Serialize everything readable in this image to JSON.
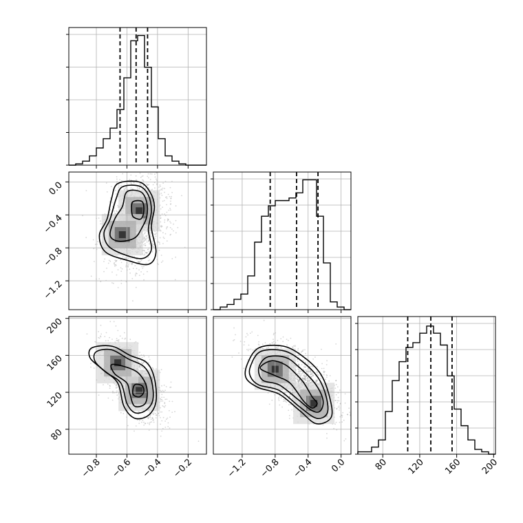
{
  "chart_data": {
    "type": "corner",
    "grid": true,
    "parameters": [
      {
        "range": [
          -0.98,
          -0.08
        ],
        "ticks": [
          -0.8,
          -0.6,
          -0.4,
          -0.2
        ],
        "tick_labels": [
          "−0.8",
          "−0.6",
          "−0.4",
          "−0.2"
        ],
        "quantiles": [
          -0.645,
          -0.54,
          -0.465
        ]
      },
      {
        "range": [
          -1.55,
          0.12
        ],
        "ticks": [
          -1.2,
          -0.8,
          -0.4,
          0.0
        ],
        "tick_labels": [
          "−1.2",
          "−0.8",
          "−0.4",
          "0.0"
        ],
        "quantiles": [
          -0.86,
          -0.54,
          -0.28
        ]
      },
      {
        "range": [
          53,
          202
        ],
        "ticks": [
          80,
          120,
          160,
          200
        ],
        "tick_labels": [
          "80",
          "120",
          "160",
          "200"
        ],
        "quantiles": [
          107,
          132,
          155
        ]
      }
    ],
    "histograms": [
      {
        "param": 0,
        "bins": [
          -0.98,
          -0.08
        ],
        "counts": [
          0,
          1,
          3,
          7,
          13,
          20,
          28,
          42,
          66,
          94,
          98,
          74,
          44,
          20,
          7,
          3,
          1,
          0,
          0,
          0
        ],
        "ymax": 104,
        "y_ticks_count": 4
      },
      {
        "param": 1,
        "bins": [
          -1.55,
          0.12
        ],
        "counts": [
          0,
          1,
          2,
          4,
          6,
          13,
          26,
          36,
          40,
          42,
          42,
          43,
          45,
          50,
          50,
          36,
          18,
          3,
          1,
          0
        ],
        "ymax": 53,
        "y_ticks_count": 5
      },
      {
        "param": 2,
        "bins": [
          53,
          202
        ],
        "counts": [
          1,
          1,
          3,
          6,
          18,
          31,
          39,
          45,
          47,
          51,
          54,
          51,
          46,
          33,
          19,
          12,
          6,
          2,
          1,
          0
        ],
        "ymax": 58,
        "y_ticks_count": 5
      }
    ],
    "joint": [
      {
        "x_param": 0,
        "y_param": 1,
        "center": [
          -0.54,
          -0.5
        ],
        "spread": [
          0.1,
          0.28
        ],
        "correlation": 0.2,
        "peaks": [
          [
            -0.52,
            -0.35
          ],
          [
            -0.63,
            -0.64
          ]
        ],
        "contours": [
          [
            [
              -0.66,
              -0.02
            ],
            [
              -0.52,
              0.0
            ],
            [
              -0.45,
              -0.12
            ],
            [
              -0.42,
              -0.3
            ],
            [
              -0.44,
              -0.55
            ],
            [
              -0.41,
              -0.85
            ],
            [
              -0.46,
              -1.0
            ],
            [
              -0.6,
              -0.95
            ],
            [
              -0.74,
              -0.85
            ],
            [
              -0.78,
              -0.65
            ],
            [
              -0.73,
              -0.45
            ],
            [
              -0.7,
              -0.2
            ]
          ],
          [
            [
              -0.63,
              -0.06
            ],
            [
              -0.52,
              -0.05
            ],
            [
              -0.46,
              -0.16
            ],
            [
              -0.44,
              -0.35
            ],
            [
              -0.46,
              -0.58
            ],
            [
              -0.44,
              -0.82
            ],
            [
              -0.5,
              -0.93
            ],
            [
              -0.62,
              -0.88
            ],
            [
              -0.72,
              -0.78
            ],
            [
              -0.75,
              -0.62
            ],
            [
              -0.71,
              -0.45
            ],
            [
              -0.67,
              -0.2
            ]
          ],
          [
            [
              -0.6,
              -0.12
            ],
            [
              -0.51,
              -0.12
            ],
            [
              -0.47,
              -0.25
            ],
            [
              -0.47,
              -0.42
            ],
            [
              -0.5,
              -0.55
            ],
            [
              -0.55,
              -0.68
            ],
            [
              -0.65,
              -0.72
            ],
            [
              -0.71,
              -0.65
            ],
            [
              -0.68,
              -0.45
            ],
            [
              -0.63,
              -0.3
            ]
          ],
          [
            [
              -0.56,
              -0.24
            ],
            [
              -0.5,
              -0.24
            ],
            [
              -0.49,
              -0.36
            ],
            [
              -0.51,
              -0.45
            ],
            [
              -0.56,
              -0.42
            ],
            [
              -0.57,
              -0.32
            ]
          ]
        ]
      },
      {
        "x_param": 0,
        "y_param": 2,
        "center": [
          -0.56,
          133
        ],
        "spread": [
          0.1,
          20
        ],
        "correlation": -0.6,
        "peaks": [
          [
            -0.52,
            122
          ],
          [
            -0.66,
            152
          ]
        ],
        "contours": [
          [
            [
              -0.83,
              168
            ],
            [
              -0.7,
              170
            ],
            [
              -0.58,
              160
            ],
            [
              -0.47,
              152
            ],
            [
              -0.42,
              135
            ],
            [
              -0.41,
              110
            ],
            [
              -0.46,
              95
            ],
            [
              -0.55,
              92
            ],
            [
              -0.62,
              105
            ],
            [
              -0.66,
              130
            ],
            [
              -0.76,
              145
            ],
            [
              -0.84,
              157
            ]
          ],
          [
            [
              -0.8,
              164
            ],
            [
              -0.7,
              166
            ],
            [
              -0.59,
              156
            ],
            [
              -0.49,
              148
            ],
            [
              -0.44,
              133
            ],
            [
              -0.43,
              112
            ],
            [
              -0.48,
              100
            ],
            [
              -0.55,
              98
            ],
            [
              -0.6,
              108
            ],
            [
              -0.64,
              130
            ],
            [
              -0.74,
              142
            ],
            [
              -0.81,
              154
            ]
          ],
          [
            [
              -0.7,
              150
            ],
            [
              -0.6,
              147
            ],
            [
              -0.52,
              140
            ],
            [
              -0.47,
              125
            ],
            [
              -0.48,
              108
            ],
            [
              -0.55,
              105
            ],
            [
              -0.58,
              118
            ],
            [
              -0.6,
              130
            ],
            [
              -0.68,
              140
            ]
          ],
          [
            [
              -0.55,
              128
            ],
            [
              -0.5,
              127
            ],
            [
              -0.49,
              120
            ],
            [
              -0.52,
              115
            ],
            [
              -0.56,
              118
            ]
          ]
        ]
      },
      {
        "x_param": 1,
        "y_param": 2,
        "center": [
          -0.54,
          132
        ],
        "spread": [
          0.25,
          20
        ],
        "correlation": -0.65,
        "peaks": [
          [
            -0.8,
            145
          ],
          [
            -0.33,
            108
          ]
        ],
        "contours": [
          [
            [
              -1.14,
              150
            ],
            [
              -1.0,
              168
            ],
            [
              -0.7,
              170
            ],
            [
              -0.45,
              158
            ],
            [
              -0.25,
              140
            ],
            [
              -0.14,
              115
            ],
            [
              -0.12,
              93
            ],
            [
              -0.3,
              86
            ],
            [
              -0.5,
              100
            ],
            [
              -0.75,
              118
            ],
            [
              -1.0,
              125
            ],
            [
              -1.15,
              135
            ]
          ],
          [
            [
              -1.1,
              148
            ],
            [
              -0.98,
              164
            ],
            [
              -0.7,
              165
            ],
            [
              -0.48,
              154
            ],
            [
              -0.28,
              136
            ],
            [
              -0.18,
              115
            ],
            [
              -0.17,
              97
            ],
            [
              -0.3,
              92
            ],
            [
              -0.5,
              104
            ],
            [
              -0.75,
              122
            ],
            [
              -1.0,
              128
            ],
            [
              -1.1,
              137
            ]
          ],
          [
            [
              -1.0,
              146
            ],
            [
              -0.9,
              158
            ],
            [
              -0.68,
              158
            ],
            [
              -0.52,
              148
            ],
            [
              -0.32,
              130
            ],
            [
              -0.22,
              112
            ],
            [
              -0.25,
              100
            ],
            [
              -0.35,
              100
            ],
            [
              -0.52,
              112
            ],
            [
              -0.75,
              128
            ],
            [
              -0.95,
              133
            ]
          ],
          [
            [
              -0.98,
              146
            ],
            [
              -0.85,
              154
            ],
            [
              -0.68,
              150
            ],
            [
              -0.55,
              140
            ],
            [
              -0.45,
              130
            ],
            [
              -0.35,
              115
            ],
            [
              -0.29,
              108
            ],
            [
              -0.35,
              103
            ],
            [
              -0.45,
              110
            ],
            [
              -0.62,
              130
            ],
            [
              -0.8,
              138
            ]
          ]
        ]
      }
    ]
  }
}
